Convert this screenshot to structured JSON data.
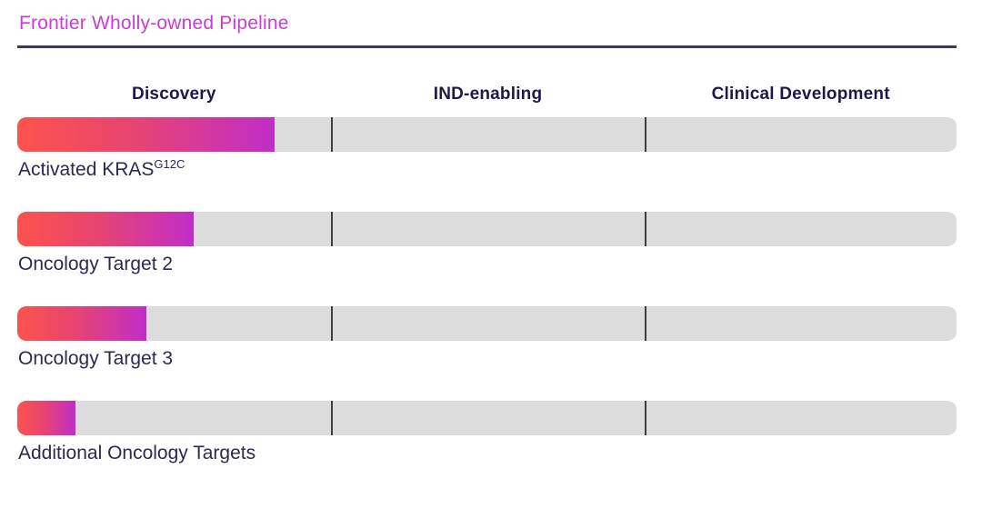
{
  "title": "Frontier Wholly-owned Pipeline",
  "stage_headers": [
    {
      "label": "Discovery"
    },
    {
      "label": "IND-enabling"
    },
    {
      "label": "Clinical Development"
    }
  ],
  "rows": [
    {
      "label": "Activated KRAS",
      "sup": "G12C",
      "track_pct": 27.4,
      "stage": "Discovery",
      "pct_of_discovery": 82
    },
    {
      "label": "Oncology Target 2",
      "sup": "",
      "track_pct": 18.8,
      "stage": "Discovery",
      "pct_of_discovery": 56
    },
    {
      "label": "Oncology Target 3",
      "sup": "",
      "track_pct": 13.7,
      "stage": "Discovery",
      "pct_of_discovery": 41
    },
    {
      "label": "Additional Oncology Targets",
      "sup": "",
      "track_pct": 6.2,
      "stage": "Discovery",
      "pct_of_discovery": 19
    }
  ],
  "colors": {
    "title": "#cb3bd6",
    "rule": "#3a3a5e",
    "header_text": "#1a1a4d",
    "label_text": "#2a2a52",
    "track": "#dcdcdc",
    "divider": "#3f3f3f",
    "bar_gradient_start": "#fc534d",
    "bar_gradient_mid": "#e84470",
    "bar_gradient_end": "#c02dc9"
  },
  "chart_data": {
    "type": "bar",
    "orientation": "horizontal",
    "title": "Frontier Wholly-owned Pipeline",
    "stages": [
      "Discovery",
      "IND-enabling",
      "Clinical Development"
    ],
    "categories": [
      "Activated KRAS G12C",
      "Oncology Target 2",
      "Oncology Target 3",
      "Additional Oncology Targets"
    ],
    "values_pct_of_full_track": [
      27.4,
      18.8,
      13.7,
      6.2
    ],
    "values_pct_of_discovery_stage": [
      82,
      56,
      41,
      19
    ],
    "stage_boundaries_pct": [
      33.37,
      66.83
    ],
    "xlim": [
      0,
      100
    ],
    "grid": false,
    "legend": false
  }
}
